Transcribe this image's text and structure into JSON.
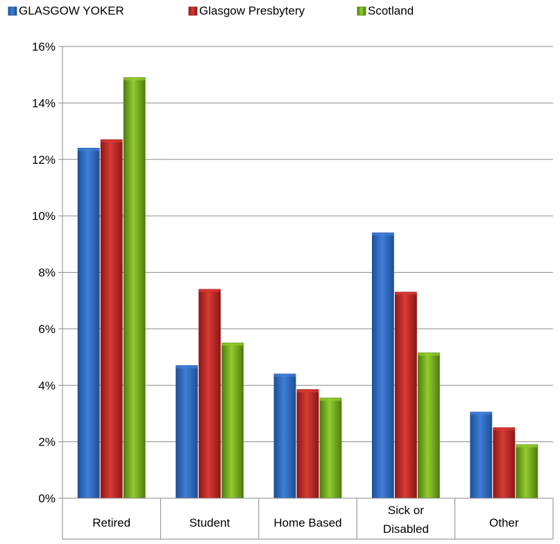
{
  "chart_data": {
    "type": "bar",
    "categories": [
      "Retired",
      "Student",
      "Home Based",
      "Sick or Disabled",
      "Other"
    ],
    "category_lines": [
      [
        "Retired"
      ],
      [
        "Student"
      ],
      [
        "Home Based"
      ],
      [
        "Sick or",
        "Disabled"
      ],
      [
        "Other"
      ]
    ],
    "series": [
      {
        "name": "GLASGOW YOKER",
        "values": [
          12.4,
          4.7,
          4.4,
          9.4,
          3.05
        ],
        "color": "#3f7fd8",
        "dark": "#1e4f96"
      },
      {
        "name": "Glasgow Presbytery",
        "values": [
          12.7,
          7.4,
          3.85,
          7.3,
          2.5
        ],
        "color": "#d83a35",
        "dark": "#8c1815"
      },
      {
        "name": "Scotland",
        "values": [
          14.9,
          5.5,
          3.55,
          5.15,
          1.9
        ],
        "color": "#92cc2e",
        "dark": "#4f7d10"
      }
    ],
    "ylim": [
      0,
      16
    ],
    "yticks": [
      "0%",
      "2%",
      "4%",
      "6%",
      "8%",
      "10%",
      "12%",
      "14%",
      "16%"
    ],
    "y_unit": "%",
    "grid": true,
    "legend_position": "top-left",
    "title": "",
    "xlabel": "",
    "ylabel": ""
  }
}
